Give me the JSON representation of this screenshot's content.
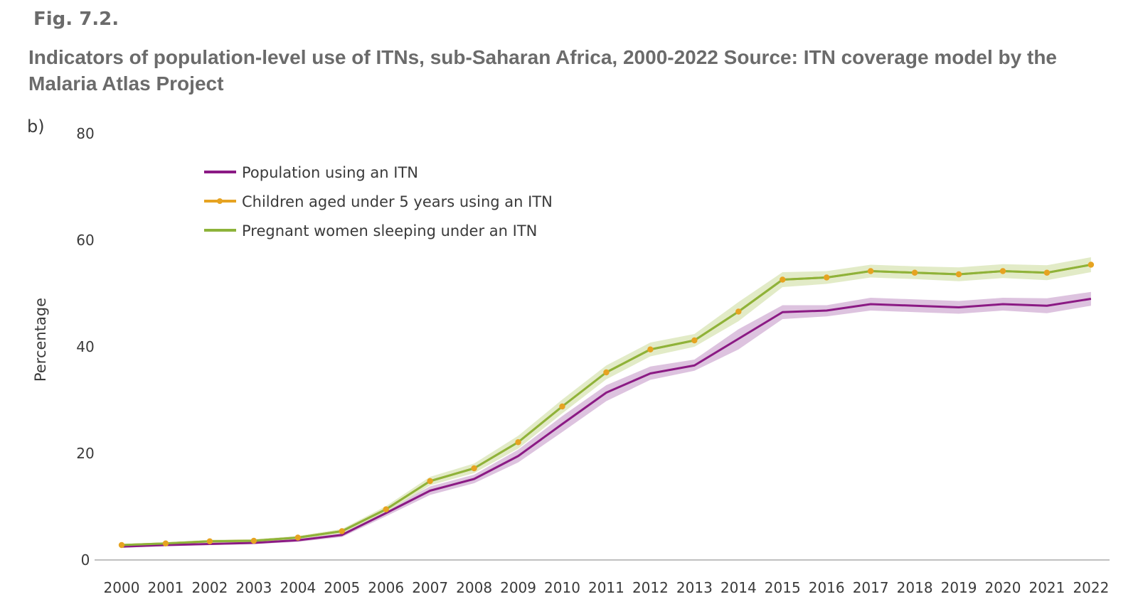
{
  "figure": {
    "label": "Fig. 7.2.",
    "title": "Indicators of population-level use of ITNs, sub-Saharan Africa, 2000-2022 Source: ITN coverage model by the Malaria Atlas Project"
  },
  "chart_data": {
    "type": "line",
    "panel_label": "b)",
    "title": "Indicators of population-level use of ITNs, sub-Saharan Africa, 2000-2022",
    "xlabel": "",
    "ylabel": "Percentage",
    "ylim": [
      0,
      80
    ],
    "yticks": [
      0,
      20,
      40,
      60,
      80
    ],
    "grid": false,
    "legend_position": "top-left",
    "categories": [
      "2000",
      "2001",
      "2002",
      "2003",
      "2004",
      "2005",
      "2006",
      "2007",
      "2008",
      "2009",
      "2010",
      "2011",
      "2012",
      "2013",
      "2014",
      "2015",
      "2016",
      "2017",
      "2018",
      "2019",
      "2020",
      "2021",
      "2022"
    ],
    "series": [
      {
        "name": "Population using an ITN",
        "color": "#8b1a84",
        "band_color": "#d7b8d9",
        "markers": false,
        "values": [
          2.5,
          2.8,
          3.0,
          3.2,
          3.7,
          4.7,
          8.8,
          13.0,
          15.2,
          19.5,
          25.5,
          31.4,
          35.0,
          36.5,
          41.5,
          46.5,
          46.8,
          48.0,
          47.7,
          47.4,
          48.0,
          47.7,
          49.0
        ],
        "lower": [
          2.3,
          2.6,
          2.8,
          3.0,
          3.4,
          4.3,
          8.2,
          12.2,
          14.4,
          18.3,
          24.0,
          29.8,
          33.8,
          35.5,
          39.5,
          45.2,
          45.7,
          46.8,
          46.5,
          46.2,
          46.8,
          46.3,
          47.7
        ],
        "upper": [
          2.7,
          3.0,
          3.2,
          3.4,
          4.0,
          5.1,
          9.4,
          13.8,
          16.0,
          20.7,
          27.0,
          32.8,
          36.3,
          37.6,
          43.3,
          47.8,
          47.8,
          49.2,
          48.9,
          48.6,
          49.2,
          49.1,
          50.3
        ]
      },
      {
        "name": "Children aged under 5 years using an ITN",
        "color": "#e6a321",
        "markers": true,
        "values": [
          2.8,
          3.1,
          3.5,
          3.6,
          4.2,
          5.4,
          9.5,
          14.8,
          17.2,
          22.1,
          28.8,
          35.2,
          39.5,
          41.2,
          46.6,
          52.6,
          53.0,
          54.2,
          53.9,
          53.6,
          54.2,
          53.9,
          55.4
        ]
      },
      {
        "name": "Pregnant women sleeping under an ITN",
        "color": "#8db33a",
        "band_color": "#dde8bd",
        "markers": false,
        "values": [
          2.8,
          3.1,
          3.5,
          3.6,
          4.2,
          5.4,
          9.5,
          14.8,
          17.2,
          22.1,
          28.8,
          35.2,
          39.5,
          41.2,
          46.6,
          52.6,
          53.0,
          54.2,
          53.9,
          53.6,
          54.2,
          53.9,
          55.4
        ],
        "lower": [
          2.6,
          2.9,
          3.2,
          3.3,
          3.9,
          5.0,
          8.9,
          14.0,
          16.3,
          20.9,
          27.5,
          33.9,
          38.2,
          40.0,
          44.8,
          51.2,
          51.8,
          53.0,
          52.7,
          52.3,
          52.9,
          52.5,
          54.0
        ],
        "upper": [
          3.0,
          3.3,
          3.8,
          3.9,
          4.5,
          5.8,
          10.1,
          15.6,
          18.1,
          23.3,
          30.1,
          36.5,
          40.8,
          42.4,
          48.4,
          54.0,
          54.2,
          55.4,
          55.1,
          54.9,
          55.5,
          55.3,
          56.8
        ]
      }
    ]
  }
}
